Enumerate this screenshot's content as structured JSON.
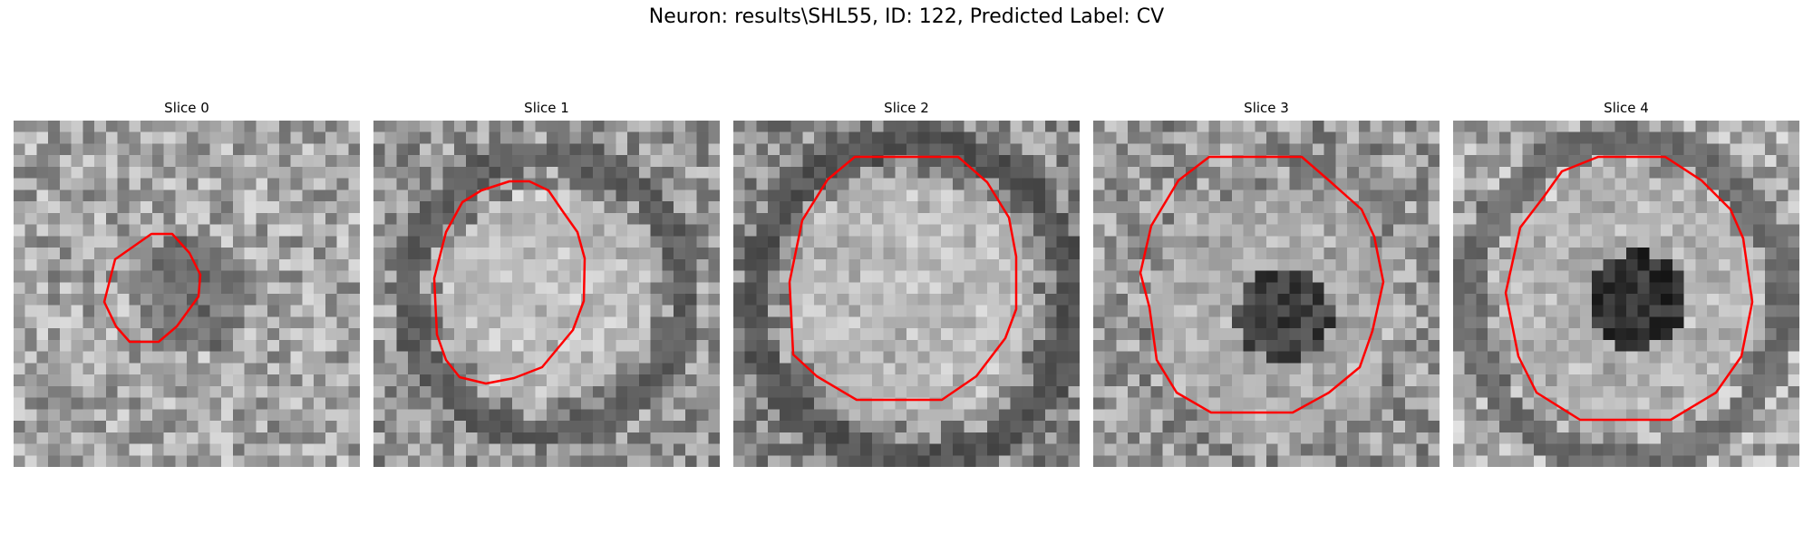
{
  "figure": {
    "title": "Neuron: results\\SHL55, ID: 122, Predicted Label: CV"
  },
  "overlay_color": "#ff0000",
  "colormap": "gray",
  "panels": [
    {
      "title": "Slice 0",
      "image": "grayscale-microscopy-patch",
      "outline": "irregular-octagon-contour"
    },
    {
      "title": "Slice 1",
      "image": "grayscale-microscopy-patch",
      "outline": "irregular-octagon-contour"
    },
    {
      "title": "Slice 2",
      "image": "grayscale-microscopy-patch",
      "outline": "irregular-octagon-contour"
    },
    {
      "title": "Slice 3",
      "image": "grayscale-microscopy-patch",
      "outline": "irregular-octagon-contour"
    },
    {
      "title": "Slice 4",
      "image": "grayscale-microscopy-patch",
      "outline": "irregular-octagon-contour"
    }
  ]
}
